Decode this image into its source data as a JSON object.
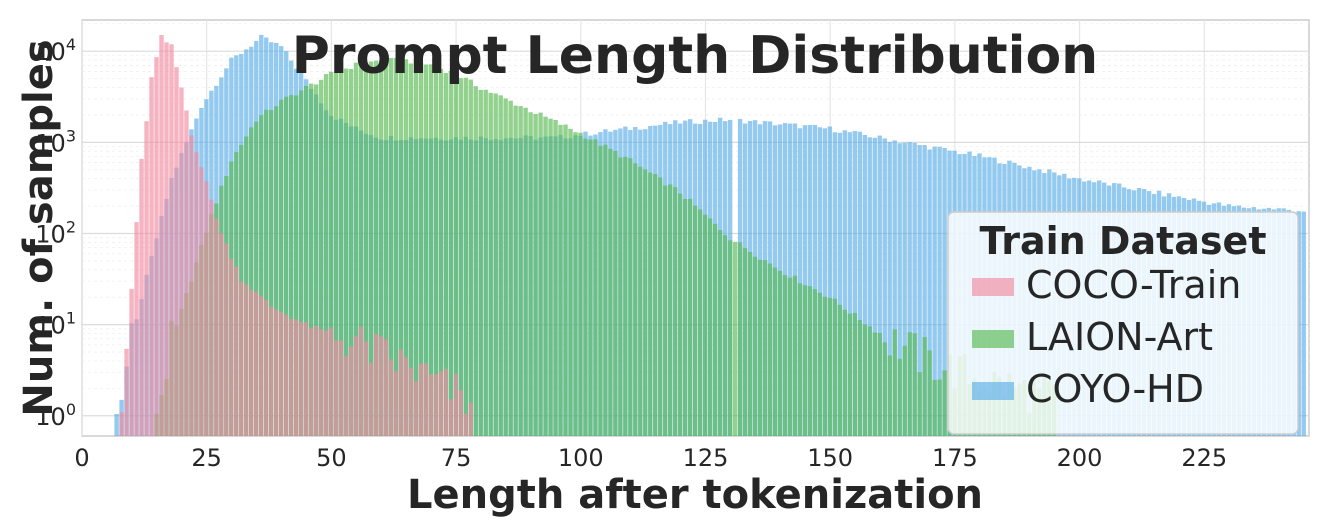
{
  "chart_data": {
    "type": "bar",
    "title": "Prompt Length Distribution",
    "xlabel": "Length after tokenization",
    "ylabel": "Num. of samples",
    "xlim": [
      0,
      246
    ],
    "ylim": [
      0.6,
      22000
    ],
    "yscale": "log",
    "grid": true,
    "legend_title": "Train Dataset",
    "legend_position": "right",
    "xticks": [
      0,
      25,
      50,
      75,
      100,
      125,
      150,
      175,
      200,
      225
    ],
    "xtick_labels": [
      "0",
      "25",
      "50",
      "75",
      "100",
      "125",
      "150",
      "175",
      "200",
      "225"
    ],
    "yticks": [
      {
        "base": "10",
        "exp": "0",
        "value": 1
      },
      {
        "base": "10",
        "exp": "1",
        "value": 10
      },
      {
        "base": "10",
        "exp": "2",
        "value": 100
      },
      {
        "base": "10",
        "exp": "3",
        "value": 1000
      },
      {
        "base": "10",
        "exp": "4",
        "value": 10000
      }
    ],
    "series": [
      {
        "name": "COYO-HD",
        "color": "#5aaee8",
        "x_range": [
          7,
          245
        ],
        "log10_keypoints": [
          [
            7,
            0
          ],
          [
            12,
            1.3
          ],
          [
            18,
            2.6
          ],
          [
            24,
            3.4
          ],
          [
            30,
            3.9
          ],
          [
            36,
            4.15
          ],
          [
            40,
            4.05
          ],
          [
            46,
            3.6
          ],
          [
            50,
            3.3
          ],
          [
            55,
            3.15
          ],
          [
            60,
            3.05
          ],
          [
            80,
            3.05
          ],
          [
            95,
            3.05
          ],
          [
            105,
            3.12
          ],
          [
            120,
            3.22
          ],
          [
            130,
            3.25
          ],
          [
            140,
            3.2
          ],
          [
            150,
            3.15
          ],
          [
            165,
            3.0
          ],
          [
            180,
            2.85
          ],
          [
            200,
            2.6
          ],
          [
            215,
            2.45
          ],
          [
            230,
            2.3
          ],
          [
            245,
            2.25
          ]
        ],
        "gap_at": [
          131
        ]
      },
      {
        "name": "LAION-Art",
        "color": "#58b952",
        "x_range": [
          15,
          195
        ],
        "log10_keypoints": [
          [
            15,
            0
          ],
          [
            18,
            0.8
          ],
          [
            22,
            1.5
          ],
          [
            26,
            2.2
          ],
          [
            30,
            2.8
          ],
          [
            35,
            3.25
          ],
          [
            40,
            3.45
          ],
          [
            45,
            3.6
          ],
          [
            50,
            3.75
          ],
          [
            55,
            3.85
          ],
          [
            60,
            3.9
          ],
          [
            65,
            3.9
          ],
          [
            70,
            3.85
          ],
          [
            75,
            3.75
          ],
          [
            80,
            3.6
          ],
          [
            90,
            3.35
          ],
          [
            100,
            3.1
          ],
          [
            110,
            2.8
          ],
          [
            120,
            2.45
          ],
          [
            125,
            2.2
          ],
          [
            130,
            1.95
          ],
          [
            140,
            1.6
          ],
          [
            150,
            1.3
          ],
          [
            160,
            0.9
          ],
          [
            170,
            0.6
          ],
          [
            180,
            0.4
          ],
          [
            195,
            0.2
          ]
        ],
        "gap_at": []
      },
      {
        "name": "COCO-Train",
        "color": "#f18aa0",
        "x_range": [
          8,
          78
        ],
        "log10_keypoints": [
          [
            8,
            0
          ],
          [
            10,
            1.4
          ],
          [
            12,
            2.8
          ],
          [
            14,
            3.7
          ],
          [
            16,
            4.15
          ],
          [
            18,
            4.05
          ],
          [
            20,
            3.6
          ],
          [
            22,
            3.1
          ],
          [
            25,
            2.55
          ],
          [
            28,
            2.0
          ],
          [
            32,
            1.5
          ],
          [
            38,
            1.2
          ],
          [
            45,
            1.0
          ],
          [
            55,
            0.8
          ],
          [
            65,
            0.55
          ],
          [
            75,
            0.25
          ],
          [
            78,
            0.1
          ]
        ],
        "gap_at": []
      }
    ]
  }
}
